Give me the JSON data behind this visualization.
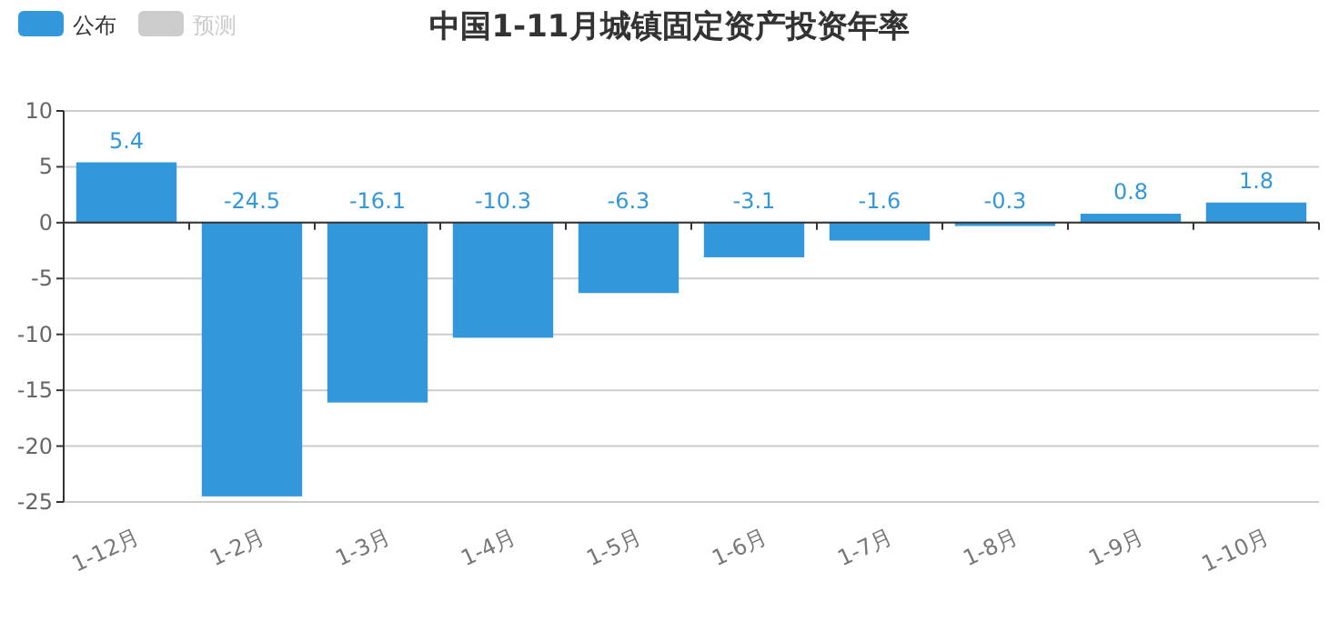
{
  "chart_data": {
    "type": "bar",
    "title": "中国1-11月城镇固定资产投资年率",
    "categories": [
      "1-12月",
      "1-2月",
      "1-3月",
      "1-4月",
      "1-5月",
      "1-6月",
      "1-7月",
      "1-8月",
      "1-9月",
      "1-10月"
    ],
    "series": [
      {
        "name": "公布",
        "color": "#3398db",
        "values": [
          5.4,
          -24.5,
          -16.1,
          -10.3,
          -6.3,
          -3.1,
          -1.6,
          -0.3,
          0.8,
          1.8
        ]
      },
      {
        "name": "预测",
        "color": "#cccccc",
        "values": [
          null,
          null,
          null,
          null,
          null,
          null,
          null,
          null,
          null,
          null
        ]
      }
    ],
    "ylim": [
      -25,
      10
    ],
    "yticks": [
      -25,
      -20,
      -15,
      -10,
      -5,
      0,
      5,
      10
    ],
    "grid": "y",
    "legend": "top left",
    "data_labels": true
  }
}
